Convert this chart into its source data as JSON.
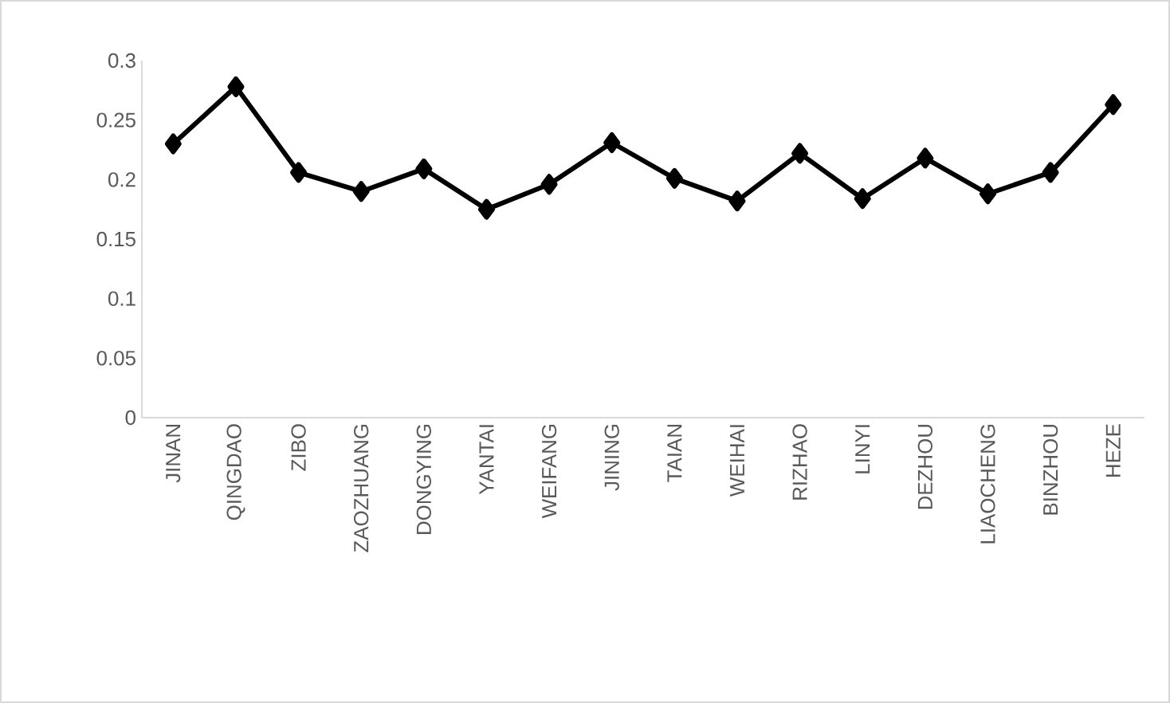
{
  "chart_data": {
    "type": "line",
    "categories": [
      "JINAN",
      "QINGDAO",
      "ZIBO",
      "ZAOZHUANG",
      "DONGYING",
      "YANTAI",
      "WEIFANG",
      "JINING",
      "TAIAN",
      "WEIHAI",
      "RIZHAO",
      "LINYI",
      "DEZHOU",
      "LIAOCHENG",
      "BINZHOU",
      "HEZE"
    ],
    "values": [
      0.23,
      0.278,
      0.206,
      0.19,
      0.209,
      0.175,
      0.196,
      0.231,
      0.201,
      0.182,
      0.222,
      0.184,
      0.218,
      0.188,
      0.206,
      0.263
    ],
    "color": "#000000",
    "marker": "diamond",
    "line_style": "solid",
    "ylim": [
      0,
      0.3
    ],
    "yticks": [
      0,
      0.05,
      0.1,
      0.15,
      0.2,
      0.25,
      0.3
    ]
  }
}
